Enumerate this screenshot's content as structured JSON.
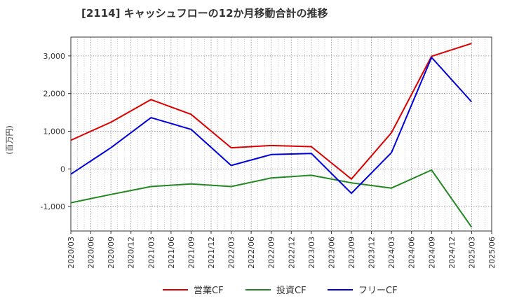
{
  "chart_data": {
    "type": "line",
    "title": "[2114]  キャッシュフローの12か月移動合計の推移",
    "ylabel": "(百万円)",
    "xlabel": "",
    "ylim": [
      -1650,
      3500
    ],
    "yticks": [
      3000,
      2000,
      1000,
      0,
      -1000
    ],
    "ytick_labels": [
      "3,000",
      "2,000",
      "1,000",
      "0",
      "-1,000"
    ],
    "categories": [
      "2020/03",
      "2020/06",
      "2020/09",
      "2020/12",
      "2021/03",
      "2021/06",
      "2021/09",
      "2021/12",
      "2022/03",
      "2022/06",
      "2022/09",
      "2022/12",
      "2023/03",
      "2023/06",
      "2023/09",
      "2023/12",
      "2024/03",
      "2024/06",
      "2024/09",
      "2024/12",
      "2025/03",
      "2025/06"
    ],
    "grid": true,
    "legend_position": "bottom",
    "series": [
      {
        "name": "営業CF",
        "color": "#dd0000",
        "points": [
          {
            "x": "2020/03",
            "y": 760
          },
          {
            "x": "2020/09",
            "y": 1240
          },
          {
            "x": "2021/03",
            "y": 1840
          },
          {
            "x": "2021/09",
            "y": 1450
          },
          {
            "x": "2022/03",
            "y": 560
          },
          {
            "x": "2022/09",
            "y": 620
          },
          {
            "x": "2023/03",
            "y": 590
          },
          {
            "x": "2023/09",
            "y": -270
          },
          {
            "x": "2024/03",
            "y": 960
          },
          {
            "x": "2024/09",
            "y": 2990
          },
          {
            "x": "2025/03",
            "y": 3330
          }
        ]
      },
      {
        "name": "投資CF",
        "color": "#228822",
        "points": [
          {
            "x": "2020/03",
            "y": -900
          },
          {
            "x": "2020/09",
            "y": -680
          },
          {
            "x": "2021/03",
            "y": -470
          },
          {
            "x": "2021/09",
            "y": -400
          },
          {
            "x": "2022/03",
            "y": -470
          },
          {
            "x": "2022/09",
            "y": -240
          },
          {
            "x": "2023/03",
            "y": -170
          },
          {
            "x": "2023/09",
            "y": -370
          },
          {
            "x": "2024/03",
            "y": -510
          },
          {
            "x": "2024/09",
            "y": -30
          },
          {
            "x": "2025/03",
            "y": -1550
          }
        ]
      },
      {
        "name": "フリーCF",
        "color": "#0000dd",
        "points": [
          {
            "x": "2020/03",
            "y": -140
          },
          {
            "x": "2020/09",
            "y": 560
          },
          {
            "x": "2021/03",
            "y": 1360
          },
          {
            "x": "2021/09",
            "y": 1050
          },
          {
            "x": "2022/03",
            "y": 90
          },
          {
            "x": "2022/09",
            "y": 380
          },
          {
            "x": "2023/03",
            "y": 410
          },
          {
            "x": "2023/09",
            "y": -650
          },
          {
            "x": "2024/03",
            "y": 430
          },
          {
            "x": "2024/09",
            "y": 2960
          },
          {
            "x": "2025/03",
            "y": 1780
          }
        ]
      }
    ]
  }
}
